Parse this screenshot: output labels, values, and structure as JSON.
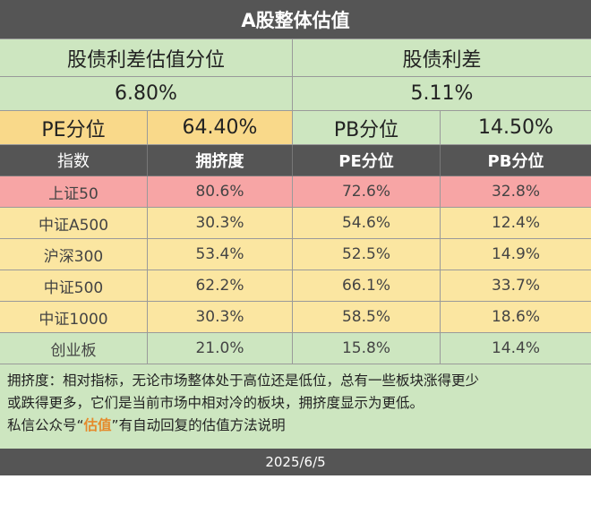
{
  "title": "A股整体估值",
  "summary": {
    "spread_percentile_label": "股债利差估值分位",
    "spread_label": "股债利差",
    "spread_percentile_value": "6.80%",
    "spread_value": "5.11%"
  },
  "kpis": {
    "pe_label": "PE分位",
    "pe_value": "64.40%",
    "pb_label": "PB分位",
    "pb_value": "14.50%"
  },
  "table": {
    "headers": [
      "指数",
      "拥挤度",
      "PE分位",
      "PB分位"
    ],
    "rows": [
      {
        "name": "上证50",
        "crowding": "80.6%",
        "pe": "72.6%",
        "pb": "32.8%",
        "color": "#f7a5a5"
      },
      {
        "name": "中证A500",
        "crowding": "30.3%",
        "pe": "54.6%",
        "pb": "12.4%",
        "color": "#fbe6a1"
      },
      {
        "name": "沪深300",
        "crowding": "53.4%",
        "pe": "52.5%",
        "pb": "14.9%",
        "color": "#fbe6a1"
      },
      {
        "name": "中证500",
        "crowding": "62.2%",
        "pe": "66.1%",
        "pb": "33.7%",
        "color": "#fbe6a1"
      },
      {
        "name": "中证1000",
        "crowding": "30.3%",
        "pe": "58.5%",
        "pb": "18.6%",
        "color": "#fbe6a1"
      },
      {
        "name": "创业板",
        "crowding": "21.0%",
        "pe": "15.8%",
        "pb": "14.4%",
        "color": "#cde6c0"
      }
    ]
  },
  "notes": {
    "line1": "拥挤度：相对指标，无论市场整体处于高位还是低位，总有一些板块涨得更少",
    "line2": "或跌得更多，它们是当前市场中相对冷的板块，拥挤度显示为更低。",
    "line3_prefix": "私信公众号“",
    "line3_keyword": "估值",
    "line3_suffix": "”有自动回复的估值方法说明"
  },
  "footer": {
    "date": "2025/6/5"
  },
  "colors": {
    "header_bg": "#555555",
    "green": "#cde6c0",
    "yellow": "#fbe6a1",
    "orange": "#f9d98a",
    "red": "#f7a5a5",
    "highlight": "#e58a2b"
  }
}
